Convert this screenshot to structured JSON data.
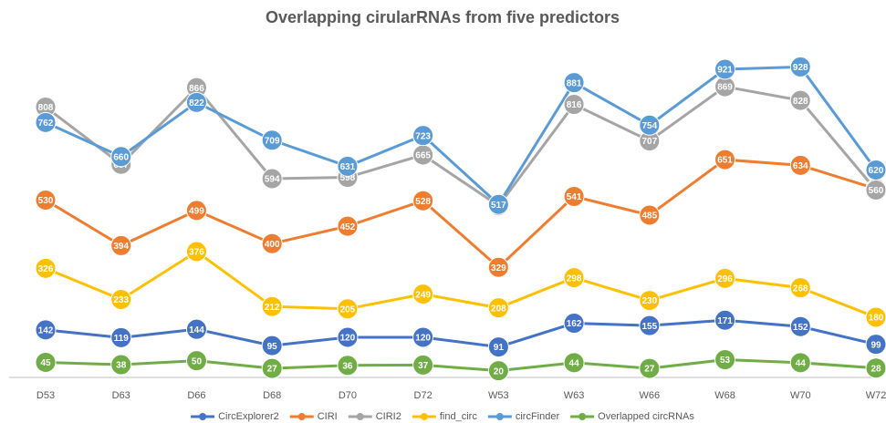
{
  "chart_data": {
    "type": "line",
    "title": "Overlapping cirularRNAs from five predictors",
    "categories": [
      "D53",
      "D63",
      "D66",
      "D68",
      "D70",
      "D72",
      "W53",
      "W63",
      "W66",
      "W68",
      "W70",
      "W72"
    ],
    "ylim": [
      0,
      1000
    ],
    "series": [
      {
        "name": "CircExplorer2",
        "color": "#4472c4",
        "values": [
          142,
          119,
          144,
          95,
          120,
          120,
          91,
          162,
          155,
          171,
          152,
          99
        ]
      },
      {
        "name": "CIRI",
        "color": "#ed7d31",
        "values": [
          530,
          394,
          499,
          400,
          452,
          528,
          329,
          541,
          485,
          651,
          634,
          564
        ]
      },
      {
        "name": "CIRI2",
        "color": "#a5a5a5",
        "values": [
          808,
          637,
          866,
          594,
          598,
          665,
          513,
          816,
          707,
          869,
          828,
          560
        ]
      },
      {
        "name": "find_circ",
        "color": "#ffc000",
        "values": [
          326,
          233,
          376,
          212,
          205,
          249,
          208,
          298,
          230,
          296,
          268,
          180
        ]
      },
      {
        "name": "circFinder",
        "color": "#5b9bd5",
        "values": [
          762,
          660,
          822,
          709,
          631,
          723,
          517,
          881,
          754,
          921,
          928,
          620
        ]
      },
      {
        "name": "Overlapped circRNAs",
        "color": "#70ad47",
        "values": [
          45,
          38,
          50,
          27,
          36,
          37,
          20,
          44,
          27,
          53,
          44,
          28
        ]
      }
    ]
  }
}
